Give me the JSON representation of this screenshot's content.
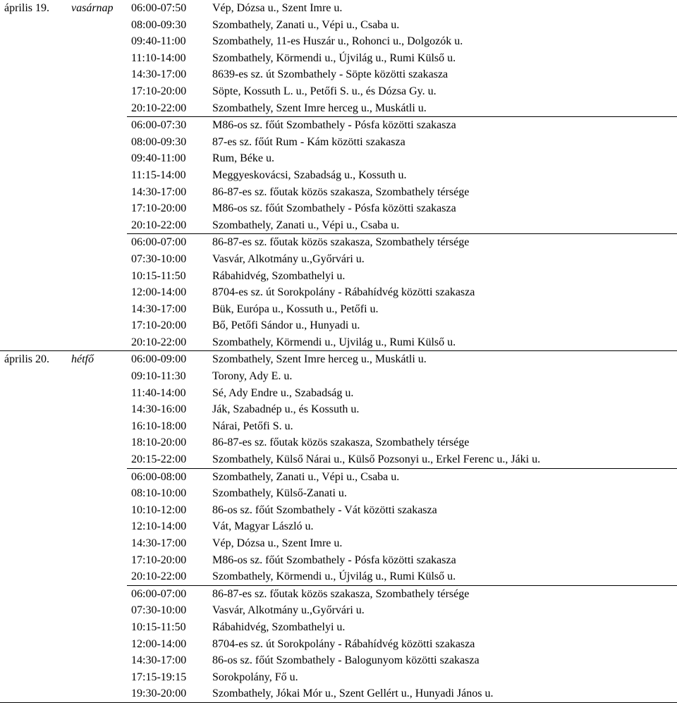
{
  "days": [
    {
      "date": "április 19.",
      "dayname": "vasárnap",
      "blocks": [
        {
          "sepClass": "",
          "rows": [
            {
              "time": "06:00-07:50",
              "place": "Vép, Dózsa u., Szent Imre u."
            },
            {
              "time": "08:00-09:30",
              "place": "Szombathely, Zanati u., Vépi u., Csaba u."
            },
            {
              "time": "09:40-11:00",
              "place": "Szombathely, 11-es Huszár u., Rohonci u., Dolgozók u."
            },
            {
              "time": "11:10-14:00",
              "place": "Szombathely, Körmendi u., Újvilág u., Rumi Külső u."
            },
            {
              "time": "14:30-17:00",
              "place": "8639-es sz. út Szombathely - Söpte közötti szakasza"
            },
            {
              "time": "17:10-20:00",
              "place": "Söpte, Kossuth L. u., Petőfi S. u., és Dózsa Gy. u."
            },
            {
              "time": "20:10-22:00",
              "place": "Szombathely, Szent Imre herceg u., Muskátli u."
            }
          ]
        },
        {
          "sepClass": "sep",
          "rows": [
            {
              "time": "06:00-07:30",
              "place": "M86-os sz. főút Szombathely - Pósfa közötti szakasza"
            },
            {
              "time": "08:00-09:30",
              "place": "87-es sz. főút Rum - Kám közötti szakasza"
            },
            {
              "time": "09:40-11:00",
              "place": "Rum, Béke u."
            },
            {
              "time": "11:15-14:00",
              "place": "Meggyeskovácsi, Szabadság u., Kossuth u."
            },
            {
              "time": "14:30-17:00",
              "place": "86-87-es sz. főutak közös szakasza, Szombathely térsége"
            },
            {
              "time": "17:10-20:00",
              "place": "M86-os sz. főút Szombathely - Pósfa közötti szakasza"
            },
            {
              "time": "20:10-22:00",
              "place": "Szombathely, Zanati u., Vépi u., Csaba u."
            }
          ]
        },
        {
          "sepClass": "sep",
          "rows": [
            {
              "time": "06:00-07:00",
              "place": "86-87-es sz. főutak közös szakasza, Szombathely térsége"
            },
            {
              "time": "07:30-10:00",
              "place": "Vasvár, Alkotmány u.,Győrvári u."
            },
            {
              "time": "10:15-11:50",
              "place": "Rábahidvég, Szombathelyi u."
            },
            {
              "time": "12:00-14:00",
              "place": "8704-es sz. út Sorokpolány - Rábahídvég közötti szakasza"
            },
            {
              "time": "14:30-17:00",
              "place": "Bük, Európa u., Kossuth u., Petőfi u."
            },
            {
              "time": "17:10-20:00",
              "place": "Bő, Petőfi Sándor u., Hunyadi u."
            },
            {
              "time": "20:10-22:00",
              "place": "Szombathely, Körmendi u., Ujvilág u., Rumi Külső u."
            }
          ]
        }
      ]
    },
    {
      "date": "április 20.",
      "dayname": "hétfő",
      "blocks": [
        {
          "sepClass": "sep-heavy",
          "rows": [
            {
              "time": "06:00-09:00",
              "place": "Szombathely, Szent Imre herceg u., Muskátli u."
            },
            {
              "time": "09:10-11:30",
              "place": "Torony, Ady E. u."
            },
            {
              "time": "11:40-14:00",
              "place": "Sé, Ady Endre u., Szabadság u."
            },
            {
              "time": "14:30-16:00",
              "place": "Ják, Szabadnép u., és Kossuth u."
            },
            {
              "time": "16:10-18:00",
              "place": "Nárai, Petőfi S. u."
            },
            {
              "time": "18:10-20:00",
              "place": "86-87-es sz. főutak közös szakasza, Szombathely térsége"
            },
            {
              "time": "20:15-22:00",
              "place": "Szombathely, Külső Nárai u., Külső Pozsonyi u., Erkel Ferenc u., Jáki u."
            }
          ]
        },
        {
          "sepClass": "sep",
          "rows": [
            {
              "time": "06:00-08:00",
              "place": "Szombathely, Zanati u., Vépi u., Csaba u."
            },
            {
              "time": "08:10-10:00",
              "place": "Szombathely, Külső-Zanati u."
            },
            {
              "time": "10:10-12:00",
              "place": "86-os sz. főút Szombathely - Vát közötti szakasza"
            },
            {
              "time": "12:10-14:00",
              "place": "Vát, Magyar László u."
            },
            {
              "time": "14:30-17:00",
              "place": "Vép, Dózsa u., Szent Imre u."
            },
            {
              "time": "17:10-20:00",
              "place": "M86-os sz. főút Szombathely - Pósfa közötti szakasza"
            },
            {
              "time": "20:10-22:00",
              "place": "Szombathely, Körmendi u., Újvilág u., Rumi Külső u."
            }
          ]
        },
        {
          "sepClass": "sep",
          "rows": [
            {
              "time": "06:00-07:00",
              "place": "86-87-es sz. főutak közös szakasza, Szombathely térsége"
            },
            {
              "time": "07:30-10:00",
              "place": "Vasvár, Alkotmány u.,Győrvári u."
            },
            {
              "time": "10:15-11:50",
              "place": "Rábahidvég, Szombathelyi u."
            },
            {
              "time": "12:00-14:00",
              "place": "8704-es sz. út Sorokpolány - Rábahídvég közötti szakasza"
            },
            {
              "time": "14:30-17:00",
              "place": "86-os sz. főút Szombathely - Balogunyom közötti szakasza"
            },
            {
              "time": "17:15-19:15",
              "place": "Sorokpolány, Fő u."
            },
            {
              "time": "19:30-20:00",
              "place": "Szombathely, Jókai Mór u., Szent Gellért u., Hunyadi János u."
            }
          ]
        }
      ]
    }
  ]
}
